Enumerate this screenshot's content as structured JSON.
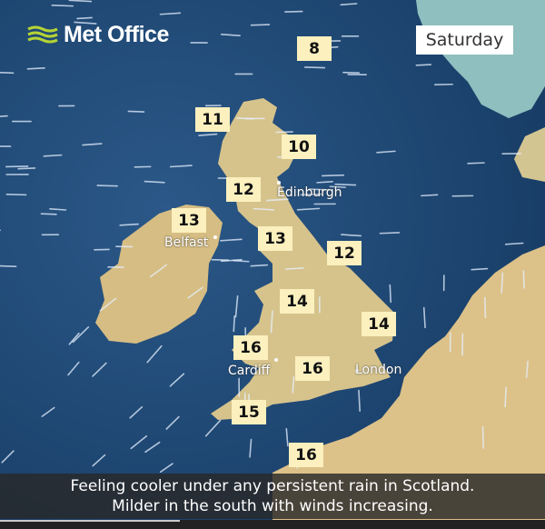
{
  "brand": {
    "name": "Met Office",
    "logo_color": "#b5d334"
  },
  "day_label": "Saturday",
  "colors": {
    "sea": "#1d4672",
    "land": "#d9c089",
    "temp_box": "#fbf0be"
  },
  "temperatures": [
    {
      "region": "Shetland",
      "value": "8"
    },
    {
      "region": "Western Isles",
      "value": "11"
    },
    {
      "region": "North-east Scotland",
      "value": "10"
    },
    {
      "region": "West Scotland",
      "value": "12"
    },
    {
      "region": "Northern Ireland",
      "value": "13"
    },
    {
      "region": "North-west England",
      "value": "13"
    },
    {
      "region": "North-east England",
      "value": "12"
    },
    {
      "region": "Midlands",
      "value": "14"
    },
    {
      "region": "East Anglia",
      "value": "14"
    },
    {
      "region": "Wales",
      "value": "16"
    },
    {
      "region": "South England",
      "value": "16"
    },
    {
      "region": "South-west England",
      "value": "15"
    },
    {
      "region": "Channel Islands",
      "value": "16"
    }
  ],
  "cities": [
    "Edinburgh",
    "Belfast",
    "Cardiff",
    "London"
  ],
  "caption": {
    "line1": "Feeling cooler under any persistent rain in Scotland.",
    "line2": "Milder in the south with winds increasing."
  },
  "video_progress_percent": 33
}
